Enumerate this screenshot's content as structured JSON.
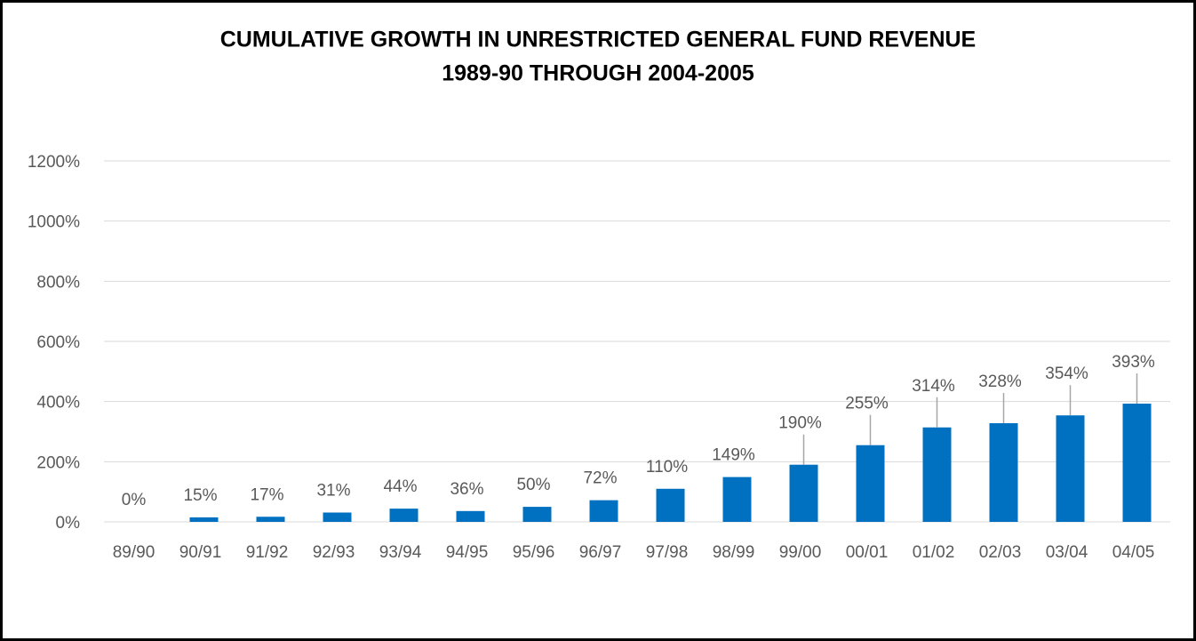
{
  "chart_data": {
    "type": "bar",
    "title": [
      "CUMULATIVE GROWTH IN UNRESTRICTED GENERAL FUND REVENUE",
      "1989-90 THROUGH 2004-2005"
    ],
    "categories": [
      "89/90",
      "90/91",
      "91/92",
      "92/93",
      "93/94",
      "94/95",
      "95/96",
      "96/97",
      "97/98",
      "98/99",
      "99/00",
      "00/01",
      "01/02",
      "02/03",
      "03/04",
      "04/05"
    ],
    "values": [
      0,
      15,
      17,
      31,
      44,
      36,
      50,
      72,
      110,
      149,
      190,
      255,
      314,
      328,
      354,
      393
    ],
    "value_labels": [
      "0%",
      "15%",
      "17%",
      "31%",
      "44%",
      "36%",
      "50%",
      "72%",
      "110%",
      "149%",
      "190%",
      "255%",
      "314%",
      "328%",
      "354%",
      "393%"
    ],
    "color": "#0070c0",
    "ylim": [
      0,
      1200
    ],
    "yticks": [
      {
        "value": 0,
        "label": "0%"
      },
      {
        "value": 200,
        "label": "200%"
      },
      {
        "value": 400,
        "label": "400%"
      },
      {
        "value": 600,
        "label": "600%"
      },
      {
        "value": 800,
        "label": "800%"
      },
      {
        "value": 1000,
        "label": "1000%"
      },
      {
        "value": 1200,
        "label": "1200%"
      }
    ],
    "grid": true
  }
}
